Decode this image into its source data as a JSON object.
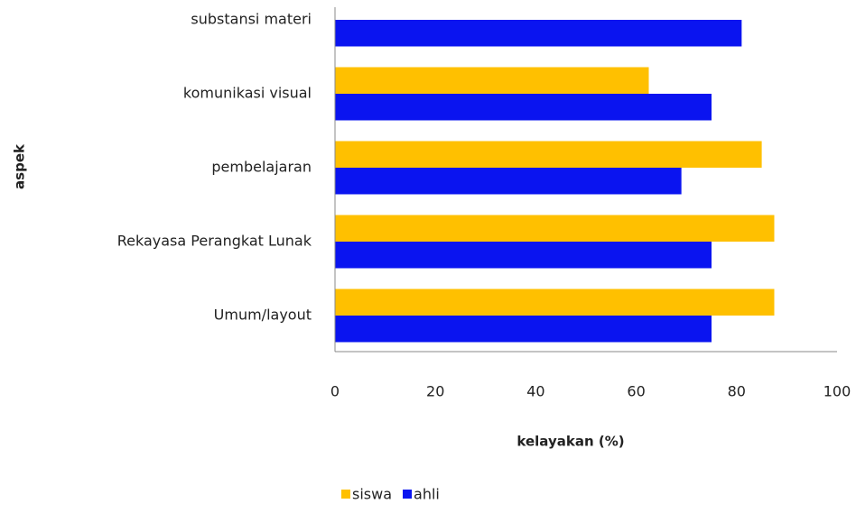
{
  "chart_data": {
    "type": "barh",
    "categories": [
      "substansi materi",
      "komunikasi visual",
      "pembelajaran",
      "Rekayasa Perangkat Lunak",
      "Umum/layout"
    ],
    "series": [
      {
        "name": "siswa",
        "color": "#ffc000",
        "values": [
          null,
          62.5,
          85,
          87.5,
          87.5
        ]
      },
      {
        "name": "ahli",
        "color": "#0a14f0",
        "values": [
          81,
          75,
          69,
          75,
          75
        ]
      }
    ],
    "xlabel": "kelayakan (%)",
    "ylabel": "aspek",
    "xlim": [
      0,
      100
    ],
    "xticks": [
      0,
      20,
      40,
      60,
      80,
      100
    ],
    "legend": "bottom"
  }
}
